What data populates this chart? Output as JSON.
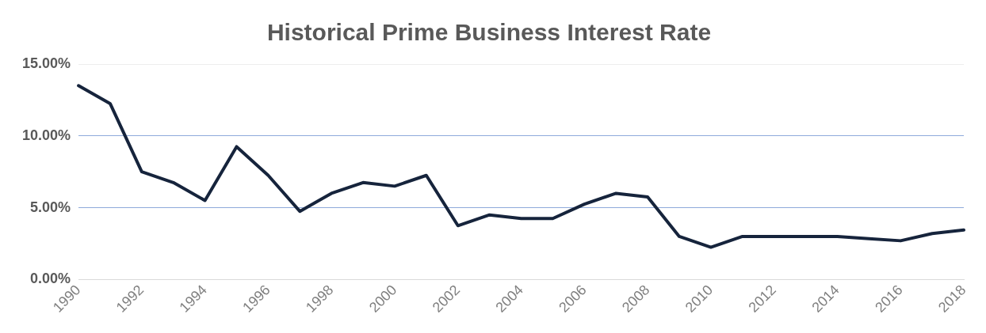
{
  "chart_data": {
    "type": "line",
    "title": "Historical Prime Business Interest Rate",
    "categories": [
      "1990",
      null,
      "1992",
      null,
      "1994",
      null,
      "1996",
      null,
      "1998",
      null,
      "2000",
      null,
      "2002",
      null,
      "2004",
      null,
      "2006",
      null,
      "2008",
      null,
      "2010",
      null,
      "2012",
      null,
      "2014",
      null,
      "2016",
      null,
      "2018"
    ],
    "series": [
      {
        "color": "#16243c",
        "values": [
          13.5,
          12.25,
          7.5,
          6.75,
          5.5,
          9.25,
          7.25,
          4.75,
          6.0,
          6.75,
          6.5,
          7.25,
          3.75,
          4.5,
          4.25,
          4.25,
          5.25,
          6.0,
          5.75,
          3.0,
          2.25,
          3.0,
          3.0,
          3.0,
          3.0,
          2.85,
          2.7,
          3.2,
          3.45
        ]
      }
    ],
    "ylim": [
      0,
      15
    ],
    "yticks": [
      {
        "value": 0,
        "label": "0.00%"
      },
      {
        "value": 5,
        "label": "5.00%"
      },
      {
        "value": 10,
        "label": "10.00%"
      },
      {
        "value": 15,
        "label": "15.00%"
      }
    ],
    "grid": "y",
    "legend": false,
    "marker": "none",
    "line_style": "solid"
  }
}
